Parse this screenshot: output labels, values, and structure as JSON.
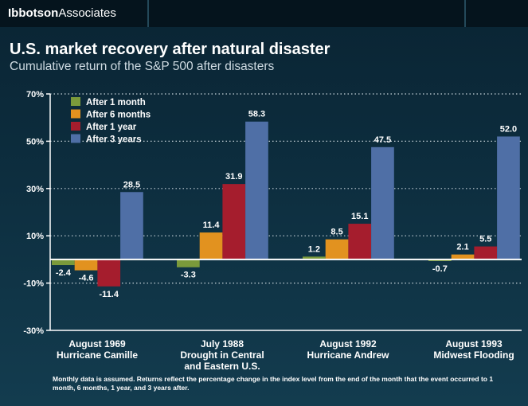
{
  "header": {
    "brand_bold": "Ibbotson",
    "brand_regular": "Associates"
  },
  "colors": {
    "after_1_month": "#7b9a3b",
    "after_6_months": "#e2921f",
    "after_1_year": "#a51d2d",
    "after_3_years": "#4f6fa6"
  },
  "footnote": "Monthly data is assumed. Returns reflect the percentage change in the index level from the end of the month that the event occurred to 1 month, 6 months, 1 year, and 3 years after.",
  "chart_data": {
    "type": "bar",
    "title": "U.S. market recovery after natural disaster",
    "subtitle": "Cumulative return of the S&P 500 after disasters",
    "xlabel": "",
    "ylabel": "",
    "ylim": [
      -30,
      70
    ],
    "yticks": [
      -30,
      -10,
      10,
      30,
      50,
      70
    ],
    "ytick_labels": [
      "-30%",
      "-10%",
      "10%",
      "30%",
      "50%",
      "70%"
    ],
    "grid": "horizontal dotted",
    "legend_position": "top-left",
    "categories": [
      [
        "August 1969",
        "Hurricane Camille"
      ],
      [
        "July 1988",
        "Drought in Central",
        "and Eastern U.S."
      ],
      [
        "August 1992",
        "Hurricane Andrew"
      ],
      [
        "August 1993",
        "Midwest Flooding"
      ]
    ],
    "series": [
      {
        "name": "After 1 month",
        "color": "#7b9a3b",
        "values": [
          -2.4,
          -3.3,
          1.2,
          -0.7
        ]
      },
      {
        "name": "After 6 months",
        "color": "#e2921f",
        "values": [
          -4.6,
          11.4,
          8.5,
          2.1
        ]
      },
      {
        "name": "After 1 year",
        "color": "#a51d2d",
        "values": [
          -11.4,
          31.9,
          15.1,
          5.5
        ]
      },
      {
        "name": "After 3 years",
        "color": "#4f6fa6",
        "values": [
          28.5,
          58.3,
          47.5,
          52.0
        ]
      }
    ],
    "value_labels": [
      [
        "-2.4",
        "-3.3",
        "1.2",
        "-0.7"
      ],
      [
        "-4.6",
        "11.4",
        "8.5",
        "2.1"
      ],
      [
        "-11.4",
        "31.9",
        "15.1",
        "5.5"
      ],
      [
        "28.5",
        "58.3",
        "47.5",
        "52.0"
      ]
    ]
  }
}
